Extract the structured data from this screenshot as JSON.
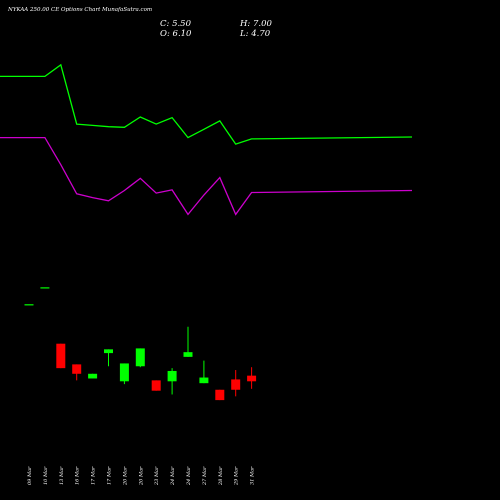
{
  "header": {
    "title": "NYKAA 250.00  CE Options  Chart MunafaSutra.com",
    "close": "C: 5.50",
    "high": "H: 7.00",
    "open": "O: 6.10",
    "low": "L: 4.70"
  },
  "colors": {
    "background": "#000000",
    "up": "#00ff00",
    "down": "#ff0000",
    "upper_line": "#00ff00",
    "lower_line": "#cc00cc",
    "text": "#ffffff"
  },
  "chart_data": {
    "type": "candlestick",
    "grid": false,
    "legend": "none",
    "categories": [
      "09 Mar",
      "10 Mar",
      "13 Mar",
      "16 Mar",
      "17 Mar",
      "17 Mar",
      "20 Mar",
      "20 Mar",
      "23 Mar",
      "24 Mar",
      "24 Mar",
      "27 Mar",
      "28 Mar",
      "29 Mar",
      "31 Mar"
    ],
    "candles": [
      {
        "open": 13.7,
        "high": 13.7,
        "low": 13.7,
        "close": 13.7
      },
      {
        "open": 15.5,
        "high": 15.5,
        "low": 15.5,
        "close": 15.5
      },
      {
        "open": 9.5,
        "high": 9.5,
        "low": 6.9,
        "close": 6.9
      },
      {
        "open": 7.3,
        "high": 7.3,
        "low": 5.6,
        "close": 6.3
      },
      {
        "open": 5.8,
        "high": 6.3,
        "low": 5.8,
        "close": 6.3
      },
      {
        "open": 8.5,
        "high": 8.9,
        "low": 7.1,
        "close": 8.9
      },
      {
        "open": 5.5,
        "high": 7.4,
        "low": 5.2,
        "close": 7.4
      },
      {
        "open": 7.1,
        "high": 9.0,
        "low": 7.0,
        "close": 9.0
      },
      {
        "open": 5.6,
        "high": 5.6,
        "low": 4.5,
        "close": 4.5
      },
      {
        "open": 5.5,
        "high": 6.9,
        "low": 4.1,
        "close": 6.6
      },
      {
        "open": 8.1,
        "high": 11.3,
        "low": 8.1,
        "close": 8.6
      },
      {
        "open": 5.3,
        "high": 7.7,
        "low": 5.3,
        "close": 5.9
      },
      {
        "open": 4.6,
        "high": 4.6,
        "low": 3.5,
        "close": 3.5
      },
      {
        "open": 5.7,
        "high": 6.7,
        "low": 3.9,
        "close": 4.6
      },
      {
        "open": 6.1,
        "high": 7.0,
        "low": 4.7,
        "close": 5.5
      }
    ],
    "upper_line": [
      51.2,
      51.2,
      53.0,
      43.8,
      43.6,
      43.4,
      43.3,
      44.9,
      43.8,
      44.8,
      41.7,
      43.0,
      44.3,
      40.7,
      41.5
    ],
    "lower_line": [
      41.7,
      41.7,
      37.5,
      33.0,
      32.4,
      31.9,
      33.5,
      35.4,
      33.1,
      33.6,
      29.8,
      32.8,
      35.5,
      29.8,
      33.2
    ]
  }
}
